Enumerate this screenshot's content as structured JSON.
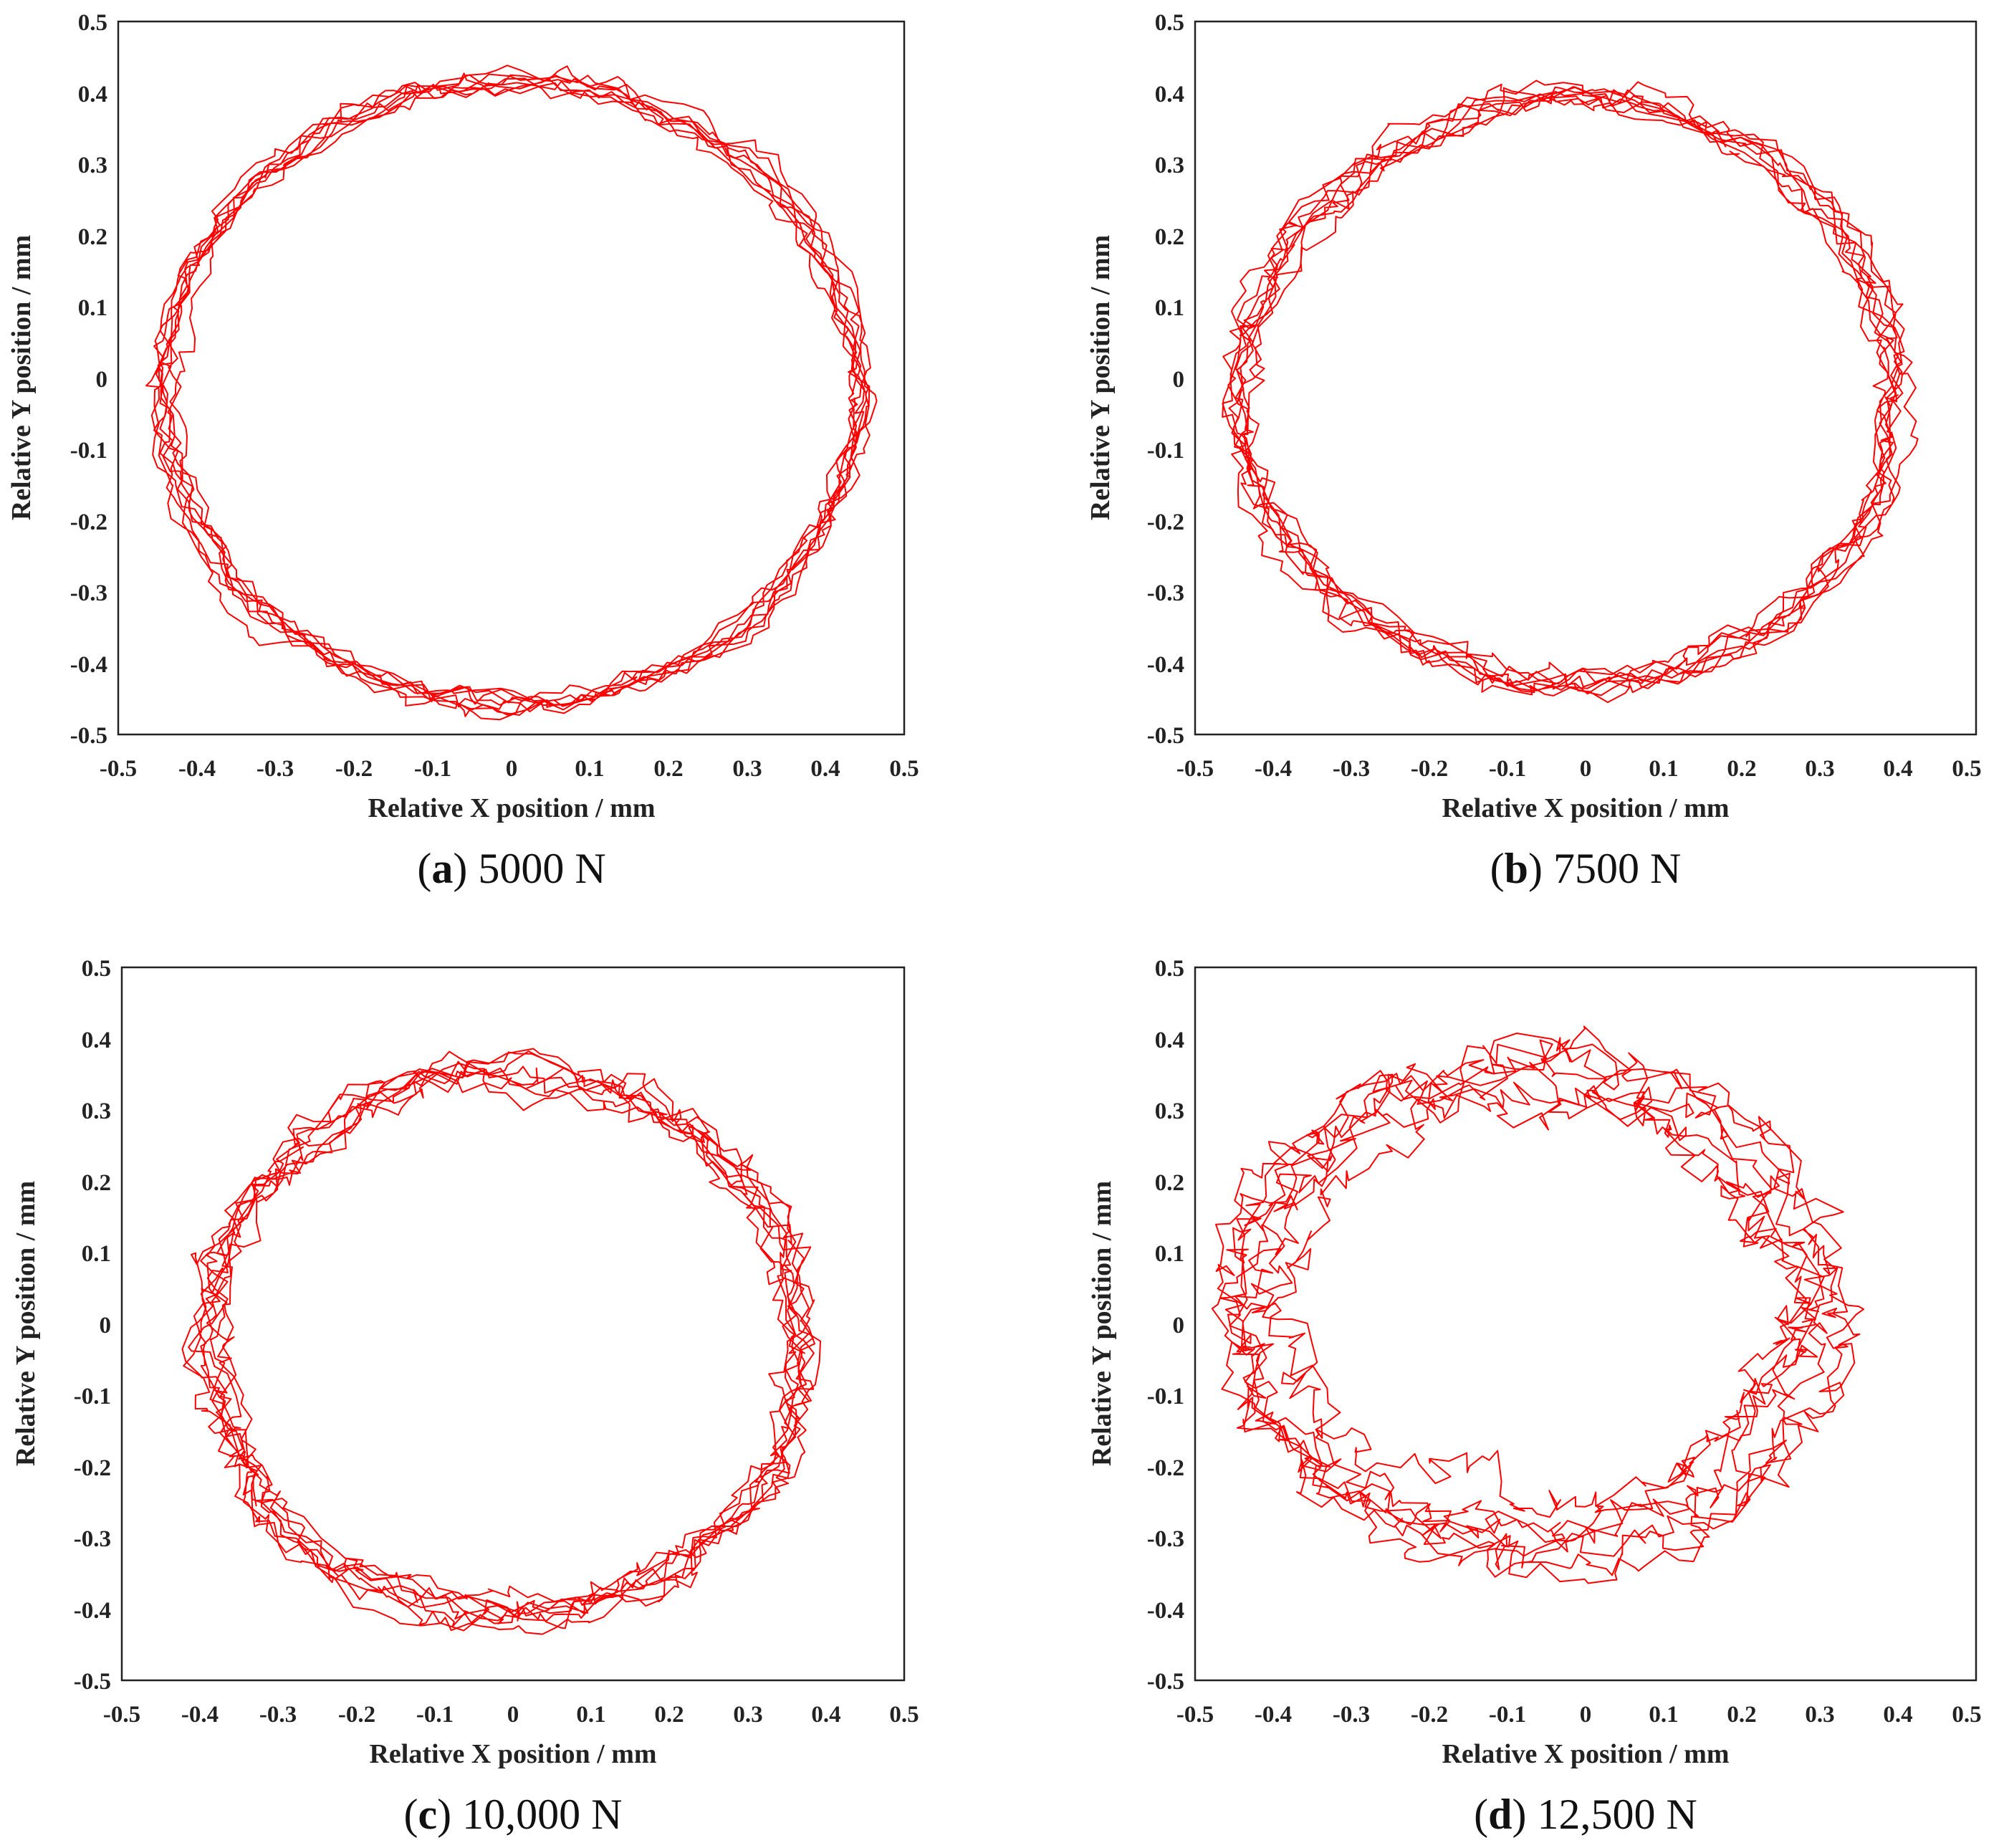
{
  "colors": {
    "trace": "#ff0000",
    "axis": "#222222",
    "background": "#ffffff"
  },
  "chart_data": [
    {
      "type": "line",
      "panel_letter": "a",
      "caption": "5000 N",
      "xlabel": "Relative X position / mm",
      "ylabel": "Relative Y position / mm",
      "xlim": [
        -0.5,
        0.5
      ],
      "ylim": [
        -0.5,
        0.5
      ],
      "xticks": [
        "-0.5",
        "-0.4",
        "-0.3",
        "-0.2",
        "-0.1",
        "0",
        "0.1",
        "0.2",
        "0.3",
        "0.4",
        "0.5"
      ],
      "yticks": [
        "-0.5",
        "-0.4",
        "-0.3",
        "-0.2",
        "-0.1",
        "0",
        "0.1",
        "0.2",
        "0.3",
        "0.4",
        "0.5"
      ],
      "trajectory": {
        "center": [
          0,
          -0.02
        ],
        "radius_x": 0.44,
        "radius_y": 0.435,
        "revolutions": 8,
        "noise_mm": 0.015,
        "spread_mm": 0.012,
        "samples": 1400,
        "seed": 11
      }
    },
    {
      "type": "line",
      "panel_letter": "b",
      "caption": "7500 N",
      "xlabel": "Relative X position / mm",
      "ylabel": "Relative Y position / mm",
      "xlim": [
        -0.5,
        0.5
      ],
      "ylim": [
        -0.5,
        0.5
      ],
      "xticks": [
        "-0.5",
        "-0.4",
        "-0.3",
        "-0.2",
        "-0.1",
        "0",
        "0.1",
        "0.2",
        "0.3",
        "0.4",
        "0.5"
      ],
      "yticks": [
        "-0.5",
        "-0.4",
        "-0.3",
        "-0.2",
        "-0.1",
        "0",
        "0.1",
        "0.2",
        "0.3",
        "0.4",
        "0.5"
      ],
      "trajectory": {
        "center": [
          -0.02,
          -0.02
        ],
        "radius_x": 0.42,
        "radius_y": 0.41,
        "revolutions": 8,
        "noise_mm": 0.018,
        "spread_mm": 0.02,
        "samples": 1400,
        "seed": 23
      }
    },
    {
      "type": "line",
      "panel_letter": "c",
      "caption": "10,000 N",
      "xlabel": "Relative X position / mm",
      "ylabel": "Relative Y position / mm",
      "xlim": [
        -0.5,
        0.5
      ],
      "ylim": [
        -0.5,
        0.5
      ],
      "xticks": [
        "-0.5",
        "-0.4",
        "-0.3",
        "-0.2",
        "-0.1",
        "0",
        "0.1",
        "0.2",
        "0.3",
        "0.4",
        "0.5"
      ],
      "yticks": [
        "-0.5",
        "-0.4",
        "-0.3",
        "-0.2",
        "-0.1",
        "0",
        "0.1",
        "0.2",
        "0.3",
        "0.4",
        "0.5"
      ],
      "trajectory": {
        "center": [
          -0.01,
          -0.03
        ],
        "radius_x": 0.38,
        "radius_y": 0.38,
        "revolutions": 8,
        "noise_mm": 0.02,
        "spread_mm": 0.028,
        "samples": 1400,
        "seed": 37
      }
    },
    {
      "type": "line",
      "panel_letter": "d",
      "caption": "12,500 N",
      "xlabel": "Relative X position / mm",
      "ylabel": "Relative Y position / mm",
      "xlim": [
        -0.5,
        0.5
      ],
      "ylim": [
        -0.5,
        0.5
      ],
      "xticks": [
        "-0.5",
        "-0.4",
        "-0.3",
        "-0.2",
        "-0.1",
        "0",
        "0.1",
        "0.2",
        "0.3",
        "0.4",
        "0.5"
      ],
      "yticks": [
        "-0.5",
        "-0.4",
        "-0.3",
        "-0.2",
        "-0.1",
        "0",
        "0.1",
        "0.2",
        "0.3",
        "0.4",
        "0.5"
      ],
      "trajectory": {
        "center": [
          -0.06,
          0.02
        ],
        "radius_x": 0.36,
        "radius_y": 0.33,
        "revolutions": 7,
        "noise_mm": 0.028,
        "spread_mm": 0.06,
        "samples": 1400,
        "seed": 53
      }
    }
  ]
}
